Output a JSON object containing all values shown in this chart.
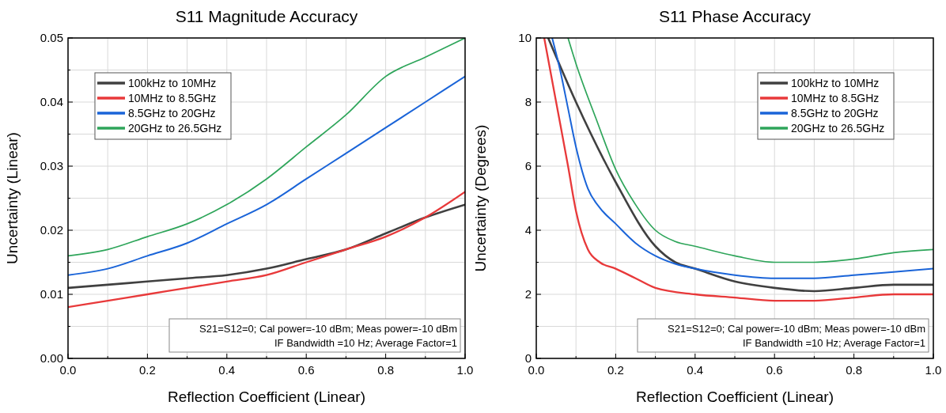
{
  "chart_data": [
    {
      "type": "line",
      "title": "S11 Magnitude Accuracy",
      "xlabel": "Reflection Coefficient (Linear)",
      "ylabel": "Uncertainty (Linear)",
      "xlim": [
        0,
        1
      ],
      "ylim": [
        0,
        0.05
      ],
      "xticks": [
        {
          "value": 0,
          "label": "0.0"
        },
        {
          "value": 0.1,
          "label": null
        },
        {
          "value": 0.2,
          "label": "0.2"
        },
        {
          "value": 0.3,
          "label": null
        },
        {
          "value": 0.4,
          "label": "0.4"
        },
        {
          "value": 0.5,
          "label": null
        },
        {
          "value": 0.6,
          "label": "0.6"
        },
        {
          "value": 0.7,
          "label": null
        },
        {
          "value": 0.8,
          "label": "0.8"
        },
        {
          "value": 0.9,
          "label": null
        },
        {
          "value": 1,
          "label": "1.0"
        }
      ],
      "yticks": [
        {
          "value": 0,
          "label": "0.00"
        },
        {
          "value": 0.005,
          "label": null
        },
        {
          "value": 0.01,
          "label": "0.01"
        },
        {
          "value": 0.015,
          "label": null
        },
        {
          "value": 0.02,
          "label": "0.02"
        },
        {
          "value": 0.025,
          "label": null
        },
        {
          "value": 0.03,
          "label": "0.03"
        },
        {
          "value": 0.035,
          "label": null
        },
        {
          "value": 0.04,
          "label": "0.04"
        },
        {
          "value": 0.045,
          "label": null
        },
        {
          "value": 0.05,
          "label": "0.05"
        }
      ],
      "grid": true,
      "legend": "top left",
      "line_style": "solid",
      "marker": "none",
      "x": [
        0,
        0.1,
        0.2,
        0.3,
        0.4,
        0.5,
        0.6,
        0.7,
        0.8,
        0.9,
        1
      ],
      "series": [
        {
          "name": "100kHz to 10MHz",
          "color": "#404040",
          "values": [
            0.011,
            0.0115,
            0.012,
            0.0125,
            0.013,
            0.014,
            0.0155,
            0.017,
            0.0195,
            0.022,
            0.024
          ]
        },
        {
          "name": "10MHz to 8.5GHz",
          "color": "#e8393a",
          "values": [
            0.008,
            0.009,
            0.01,
            0.011,
            0.012,
            0.013,
            0.015,
            0.017,
            0.019,
            0.022,
            0.026
          ]
        },
        {
          "name": "8.5GHz to 20GHz",
          "color": "#1a64d8",
          "values": [
            0.013,
            0.014,
            0.016,
            0.018,
            0.021,
            0.024,
            0.028,
            0.032,
            0.036,
            0.04,
            0.044
          ]
        },
        {
          "name": "20GHz to 26.5GHz",
          "color": "#2ea55a",
          "values": [
            0.016,
            0.017,
            0.019,
            0.021,
            0.024,
            0.028,
            0.033,
            0.038,
            0.044,
            0.047,
            0.05
          ]
        }
      ],
      "annotations": [
        "S21=S12=0; Cal power=-10 dBm; Meas power=-10 dBm",
        "IF Bandwidth =10 Hz; Average Factor=1"
      ]
    },
    {
      "type": "line",
      "title": "S11 Phase Accuracy",
      "xlabel": "Reflection Coefficient (Linear)",
      "ylabel": "Uncertainty (Degrees)",
      "xlim": [
        0,
        1
      ],
      "ylim": [
        0,
        10
      ],
      "xticks": [
        {
          "value": 0,
          "label": "0.0"
        },
        {
          "value": 0.1,
          "label": null
        },
        {
          "value": 0.2,
          "label": "0.2"
        },
        {
          "value": 0.3,
          "label": null
        },
        {
          "value": 0.4,
          "label": "0.4"
        },
        {
          "value": 0.5,
          "label": null
        },
        {
          "value": 0.6,
          "label": "0.6"
        },
        {
          "value": 0.7,
          "label": null
        },
        {
          "value": 0.8,
          "label": "0.8"
        },
        {
          "value": 0.9,
          "label": null
        },
        {
          "value": 1,
          "label": "1.0"
        }
      ],
      "yticks": [
        0,
        {
          "value": 1,
          "label": null
        },
        2,
        {
          "value": 3,
          "label": null
        },
        4,
        {
          "value": 5,
          "label": null
        },
        6,
        {
          "value": 7,
          "label": null
        },
        8,
        {
          "value": 9,
          "label": null
        },
        10
      ],
      "grid": true,
      "legend": "top right",
      "line_style": "solid",
      "marker": "none",
      "series": [
        {
          "name": "100kHz to 10MHz",
          "color": "#404040",
          "x": [
            0.03,
            0.1,
            0.2,
            0.3,
            0.35,
            0.4,
            0.5,
            0.6,
            0.7,
            0.8,
            0.9,
            1
          ],
          "values": [
            10,
            8,
            5.5,
            3.5,
            3,
            2.8,
            2.4,
            2.2,
            2.1,
            2.2,
            2.3,
            2.3
          ]
        },
        {
          "name": "10MHz to 8.5GHz",
          "color": "#e8393a",
          "x": [
            0.02,
            0.05,
            0.08,
            0.1,
            0.13,
            0.16,
            0.2,
            0.25,
            0.3,
            0.4,
            0.5,
            0.6,
            0.7,
            0.8,
            0.9,
            1
          ],
          "values": [
            10,
            8,
            6,
            4.6,
            3.4,
            3,
            2.8,
            2.5,
            2.2,
            2,
            1.9,
            1.8,
            1.8,
            1.9,
            2,
            2
          ]
        },
        {
          "name": "8.5GHz to 20GHz",
          "color": "#1a64d8",
          "x": [
            0.04,
            0.06,
            0.08,
            0.1,
            0.13,
            0.16,
            0.2,
            0.25,
            0.3,
            0.35,
            0.4,
            0.5,
            0.6,
            0.7,
            0.8,
            0.9,
            1
          ],
          "values": [
            10,
            9,
            7.8,
            6.6,
            5.3,
            4.7,
            4.2,
            3.6,
            3.2,
            2.95,
            2.8,
            2.6,
            2.5,
            2.5,
            2.6,
            2.7,
            2.8
          ]
        },
        {
          "name": "20GHz to 26.5GHz",
          "color": "#2ea55a",
          "x": [
            0.08,
            0.1,
            0.15,
            0.2,
            0.25,
            0.3,
            0.35,
            0.4,
            0.5,
            0.6,
            0.7,
            0.8,
            0.9,
            1
          ],
          "values": [
            10,
            9.2,
            7.5,
            5.9,
            4.8,
            4,
            3.65,
            3.5,
            3.2,
            3,
            3,
            3.1,
            3.3,
            3.4
          ]
        }
      ],
      "annotations": [
        "S21=S12=0; Cal power=-10 dBm; Meas power=-10 dBm",
        "IF Bandwidth =10 Hz; Average Factor=1"
      ]
    }
  ]
}
